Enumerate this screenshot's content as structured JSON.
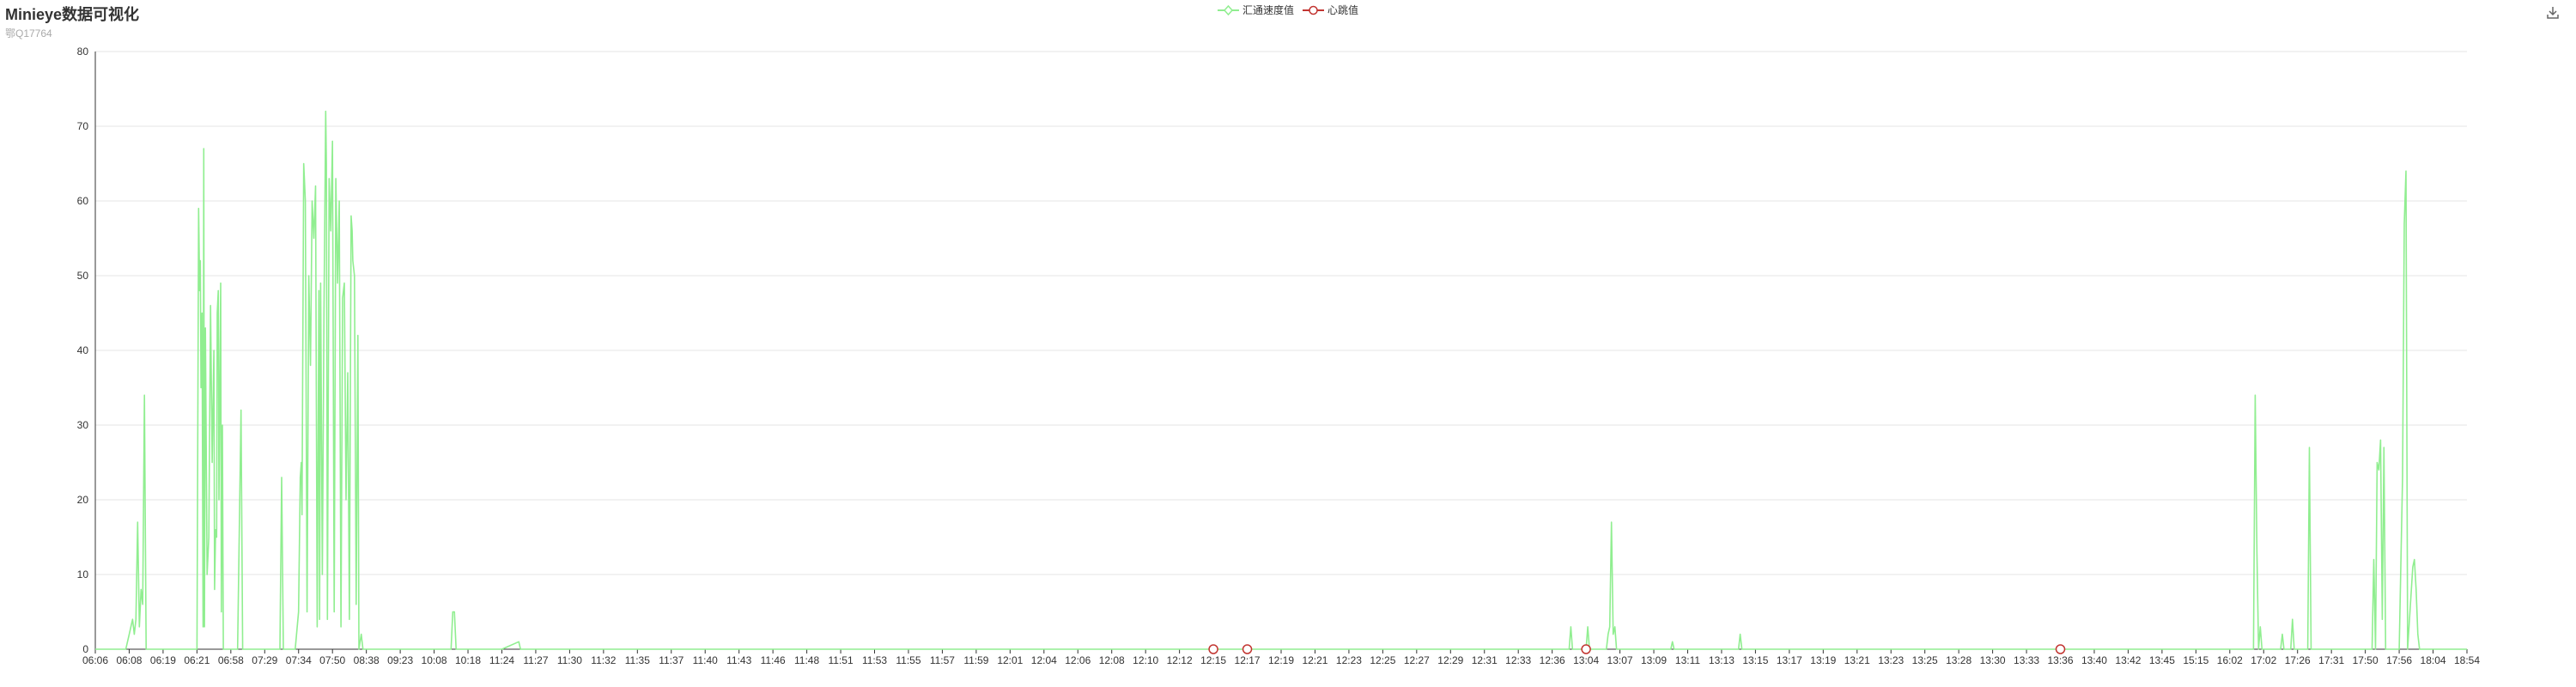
{
  "header": {
    "title": "Minieye数据可视化",
    "subtitle": "鄂Q17764"
  },
  "toolbar": {
    "save_icon": "download-icon"
  },
  "colors": {
    "speed": "#90ee90",
    "heartbeat": "#c23531",
    "grid": "#e6e6e6",
    "axis": "#333333"
  },
  "chart_data": {
    "type": "line",
    "xlabel": "",
    "ylabel": "",
    "ylim": [
      0,
      80
    ],
    "yticks": [
      0,
      10,
      20,
      30,
      40,
      50,
      60,
      70,
      80
    ],
    "grid": true,
    "legend_position": "top-center",
    "x_tick_labels": [
      "06:06",
      "06:08",
      "06:19",
      "06:21",
      "06:58",
      "07:29",
      "07:34",
      "07:50",
      "08:38",
      "09:23",
      "10:08",
      "10:18",
      "11:24",
      "11:27",
      "11:30",
      "11:32",
      "11:35",
      "11:37",
      "11:40",
      "11:43",
      "11:46",
      "11:48",
      "11:51",
      "11:53",
      "11:55",
      "11:57",
      "11:59",
      "12:01",
      "12:04",
      "12:06",
      "12:08",
      "12:10",
      "12:12",
      "12:15",
      "12:17",
      "12:19",
      "12:21",
      "12:23",
      "12:25",
      "12:27",
      "12:29",
      "12:31",
      "12:33",
      "12:36",
      "13:04",
      "13:07",
      "13:09",
      "13:11",
      "13:13",
      "13:15",
      "13:17",
      "13:19",
      "13:21",
      "13:23",
      "13:25",
      "13:28",
      "13:30",
      "13:33",
      "13:36",
      "13:40",
      "13:42",
      "13:45",
      "15:15",
      "16:02",
      "17:02",
      "17:26",
      "17:31",
      "17:50",
      "17:56",
      "18:04",
      "18:54"
    ],
    "series": [
      {
        "name": "汇通速度值",
        "color": "#90ee90",
        "symbol": "diamond",
        "points": [
          [
            0,
            0
          ],
          [
            0.9,
            0
          ],
          [
            1.0,
            2
          ],
          [
            1.1,
            4
          ],
          [
            1.15,
            2
          ],
          [
            1.2,
            4
          ],
          [
            1.25,
            17
          ],
          [
            1.3,
            3
          ],
          [
            1.35,
            8
          ],
          [
            1.4,
            6
          ],
          [
            1.45,
            34
          ],
          [
            1.5,
            0
          ],
          [
            2,
            0
          ],
          [
            3,
            0
          ],
          [
            3.05,
            59
          ],
          [
            3.08,
            48
          ],
          [
            3.1,
            52
          ],
          [
            3.12,
            35
          ],
          [
            3.15,
            45
          ],
          [
            3.18,
            3
          ],
          [
            3.2,
            67
          ],
          [
            3.22,
            3
          ],
          [
            3.25,
            43
          ],
          [
            3.3,
            10
          ],
          [
            3.35,
            15
          ],
          [
            3.4,
            46
          ],
          [
            3.45,
            25
          ],
          [
            3.5,
            40
          ],
          [
            3.52,
            8
          ],
          [
            3.55,
            16
          ],
          [
            3.58,
            15
          ],
          [
            3.6,
            45
          ],
          [
            3.63,
            48
          ],
          [
            3.65,
            20
          ],
          [
            3.7,
            49
          ],
          [
            3.72,
            5
          ],
          [
            3.75,
            30
          ],
          [
            3.78,
            0
          ],
          [
            4.0,
            0
          ],
          [
            4.2,
            0
          ],
          [
            4.3,
            32
          ],
          [
            4.35,
            0
          ],
          [
            4.6,
            0
          ],
          [
            5.0,
            0
          ],
          [
            5.45,
            0
          ],
          [
            5.5,
            23
          ],
          [
            5.55,
            0
          ],
          [
            5.9,
            0
          ],
          [
            6.0,
            5
          ],
          [
            6.05,
            23
          ],
          [
            6.08,
            25
          ],
          [
            6.1,
            18
          ],
          [
            6.15,
            65
          ],
          [
            6.2,
            60
          ],
          [
            6.25,
            5
          ],
          [
            6.3,
            50
          ],
          [
            6.35,
            38
          ],
          [
            6.4,
            60
          ],
          [
            6.45,
            55
          ],
          [
            6.5,
            62
          ],
          [
            6.55,
            3
          ],
          [
            6.6,
            48
          ],
          [
            6.62,
            4
          ],
          [
            6.65,
            49
          ],
          [
            6.7,
            10
          ],
          [
            6.75,
            45
          ],
          [
            6.8,
            72
          ],
          [
            6.82,
            65
          ],
          [
            6.85,
            4
          ],
          [
            6.9,
            63
          ],
          [
            6.95,
            56
          ],
          [
            7.0,
            68
          ],
          [
            7.05,
            5
          ],
          [
            7.1,
            63
          ],
          [
            7.15,
            49
          ],
          [
            7.2,
            60
          ],
          [
            7.25,
            3
          ],
          [
            7.3,
            47
          ],
          [
            7.35,
            49
          ],
          [
            7.4,
            20
          ],
          [
            7.45,
            37
          ],
          [
            7.5,
            4
          ],
          [
            7.55,
            58
          ],
          [
            7.58,
            56
          ],
          [
            7.6,
            52
          ],
          [
            7.65,
            50
          ],
          [
            7.7,
            6
          ],
          [
            7.75,
            42
          ],
          [
            7.78,
            0
          ],
          [
            7.85,
            2
          ],
          [
            7.9,
            0
          ],
          [
            10.5,
            0
          ],
          [
            10.55,
            5
          ],
          [
            10.6,
            5
          ],
          [
            10.65,
            0
          ],
          [
            12.0,
            0
          ],
          [
            12.5,
            1
          ],
          [
            12.55,
            0
          ],
          [
            40,
            0
          ],
          [
            43.5,
            0
          ],
          [
            43.55,
            3
          ],
          [
            43.6,
            0
          ],
          [
            44.0,
            0
          ],
          [
            44.05,
            3
          ],
          [
            44.1,
            0
          ],
          [
            44.6,
            0
          ],
          [
            44.65,
            2
          ],
          [
            44.7,
            3
          ],
          [
            44.75,
            17
          ],
          [
            44.8,
            2
          ],
          [
            44.85,
            3
          ],
          [
            44.9,
            0
          ],
          [
            45.0,
            0
          ],
          [
            46.5,
            0
          ],
          [
            46.55,
            1
          ],
          [
            46.6,
            0
          ],
          [
            48.5,
            0
          ],
          [
            48.55,
            2
          ],
          [
            48.6,
            0
          ],
          [
            50,
            0
          ],
          [
            63.7,
            0
          ],
          [
            63.75,
            34
          ],
          [
            63.8,
            13
          ],
          [
            63.85,
            0
          ],
          [
            63.9,
            3
          ],
          [
            63.95,
            0
          ],
          [
            64.5,
            0
          ],
          [
            64.55,
            2
          ],
          [
            64.6,
            0
          ],
          [
            64.8,
            0
          ],
          [
            64.85,
            4
          ],
          [
            64.9,
            0
          ],
          [
            65.3,
            0
          ],
          [
            65.35,
            27
          ],
          [
            65.4,
            0
          ],
          [
            66,
            0
          ],
          [
            67.2,
            0
          ],
          [
            67.25,
            12
          ],
          [
            67.3,
            0
          ],
          [
            67.35,
            25
          ],
          [
            67.4,
            24
          ],
          [
            67.45,
            28
          ],
          [
            67.5,
            4
          ],
          [
            67.55,
            27
          ],
          [
            67.6,
            0
          ],
          [
            68.0,
            0
          ],
          [
            68.1,
            23
          ],
          [
            68.15,
            57
          ],
          [
            68.2,
            64
          ],
          [
            68.25,
            0
          ],
          [
            68.4,
            11
          ],
          [
            68.45,
            12
          ],
          [
            68.5,
            8
          ],
          [
            68.55,
            2
          ],
          [
            68.6,
            0
          ],
          [
            70,
            0
          ]
        ]
      },
      {
        "name": "心跳值",
        "color": "#c23531",
        "symbol": "circle",
        "points": [
          [
            33,
            0
          ],
          [
            34,
            0
          ],
          [
            44,
            0
          ],
          [
            58,
            0
          ]
        ]
      }
    ]
  }
}
